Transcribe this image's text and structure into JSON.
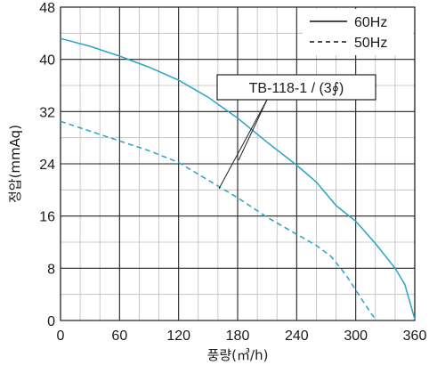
{
  "chart_data": {
    "type": "line",
    "title": "",
    "xlabel": "풍량(㎥/h)",
    "ylabel": "정압(mmAq)",
    "xlim": [
      0,
      360
    ],
    "ylim": [
      0,
      48
    ],
    "x_ticks": [
      0,
      60,
      120,
      180,
      240,
      300,
      360
    ],
    "y_ticks": [
      0,
      8,
      16,
      24,
      32,
      40,
      48
    ],
    "x_tick_labels": [
      "0",
      "60",
      "120",
      "180",
      "240",
      "300",
      "360"
    ],
    "y_tick_labels": [
      "0",
      "8",
      "16",
      "24",
      "32",
      "40",
      "48"
    ],
    "grid": "major solid every 60 x 8, minor light at 20 x 4",
    "legend_position": "top-right",
    "annotation": "TB-118-1 / (3∮)",
    "series": [
      {
        "name": "60Hz",
        "style": "solid",
        "color": "#2aa3c7",
        "points": [
          [
            0,
            43.2
          ],
          [
            30,
            42.0
          ],
          [
            60,
            40.5
          ],
          [
            90,
            38.8
          ],
          [
            120,
            36.8
          ],
          [
            150,
            34.2
          ],
          [
            180,
            31.0
          ],
          [
            210,
            27.3
          ],
          [
            240,
            23.8
          ],
          [
            260,
            21.2
          ],
          [
            280,
            17.6
          ],
          [
            300,
            15.2
          ],
          [
            320,
            11.8
          ],
          [
            340,
            8.0
          ],
          [
            350,
            5.5
          ],
          [
            360,
            0.2
          ]
        ]
      },
      {
        "name": "50Hz",
        "style": "dashed",
        "color": "#2aa3c7",
        "points": [
          [
            0,
            30.5
          ],
          [
            30,
            29.0
          ],
          [
            60,
            27.5
          ],
          [
            90,
            26.0
          ],
          [
            120,
            24.2
          ],
          [
            150,
            21.5
          ],
          [
            180,
            18.8
          ],
          [
            210,
            15.8
          ],
          [
            240,
            13.2
          ],
          [
            260,
            11.5
          ],
          [
            275,
            9.8
          ],
          [
            290,
            7.0
          ],
          [
            305,
            3.5
          ],
          [
            315,
            1.2
          ],
          [
            320,
            0.2
          ]
        ]
      }
    ]
  }
}
